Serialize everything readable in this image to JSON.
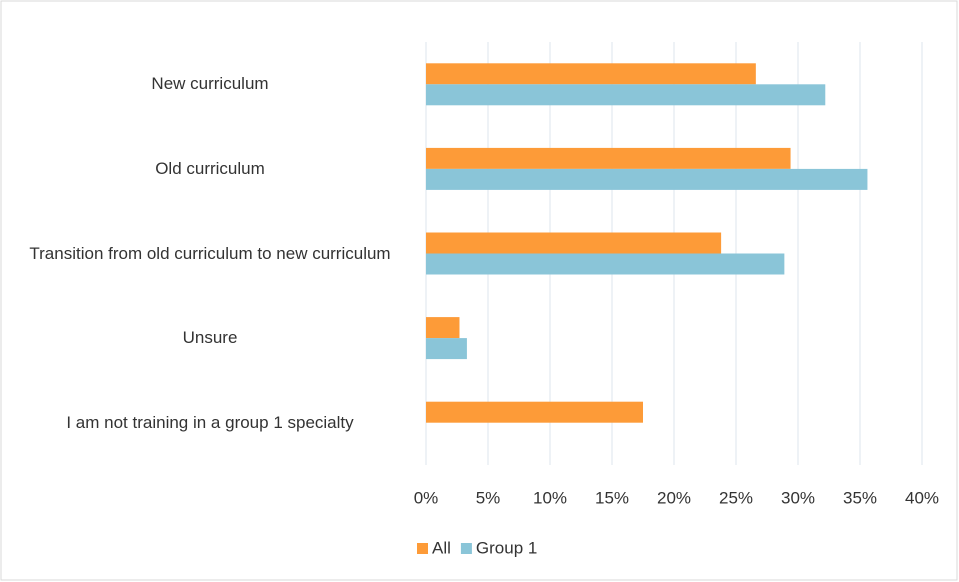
{
  "chart_data": {
    "type": "bar",
    "orientation": "horizontal",
    "categories": [
      "New curriculum",
      "Old curriculum",
      "Transition from old curriculum to new curriculum",
      "Unsure",
      "I am not training in a group 1 specialty"
    ],
    "series": [
      {
        "name": "All",
        "color": "#fd9b38",
        "values": [
          26.6,
          29.4,
          23.8,
          2.7,
          17.5
        ]
      },
      {
        "name": "Group 1",
        "color": "#8ac5d8",
        "values": [
          32.2,
          35.6,
          28.9,
          3.3,
          null
        ]
      }
    ],
    "xlim": [
      0,
      40
    ],
    "xticks": [
      {
        "value": 0,
        "label": "0%"
      },
      {
        "value": 5,
        "label": "5%"
      },
      {
        "value": 10,
        "label": "10%"
      },
      {
        "value": 15,
        "label": "15%"
      },
      {
        "value": 20,
        "label": "20%"
      },
      {
        "value": 25,
        "label": "25%"
      },
      {
        "value": 30,
        "label": "30%"
      },
      {
        "value": 35,
        "label": "35%"
      },
      {
        "value": 40,
        "label": "40%"
      }
    ],
    "grid": true,
    "legend": "bottom"
  }
}
